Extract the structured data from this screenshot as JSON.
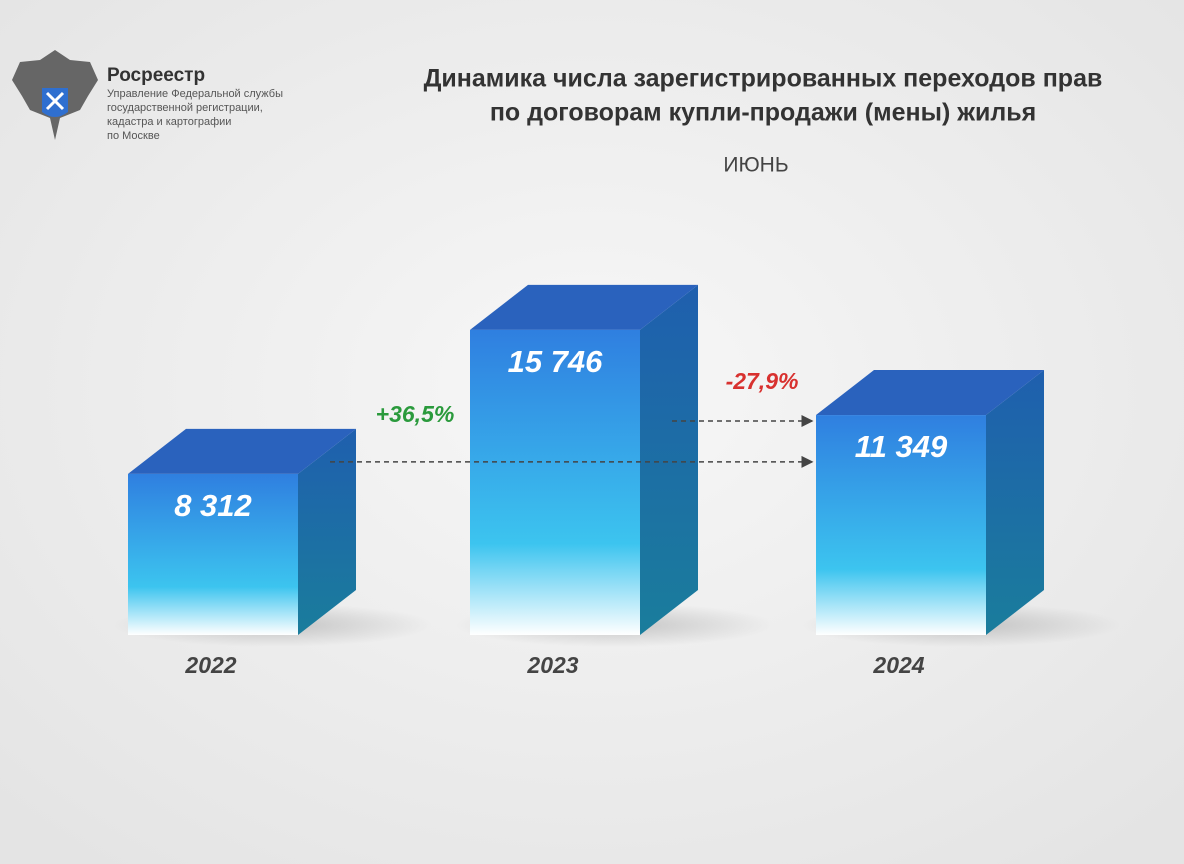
{
  "header": {
    "org": "Росреестр",
    "org_sub": [
      "Управление Федеральной службы",
      "государственной регистрации,",
      "кадастра и картографии",
      "по Москве"
    ]
  },
  "chart_data": {
    "type": "bar3d",
    "title": [
      "Динамика числа зарегистрированных переходов прав",
      "по договорам купли-продажи (мены) жилья"
    ],
    "subtitle": "ИЮНЬ",
    "categories": [
      "2022",
      "2023",
      "2024"
    ],
    "values": [
      8312,
      15746,
      11349
    ],
    "value_labels": [
      "8 312",
      "15 746",
      "11 349"
    ],
    "color": "#2f7fe0",
    "annotations": [
      {
        "text": "+36,5%",
        "color": "#2a9a3c"
      },
      {
        "text": "-27,9%",
        "color": "#d8312f"
      }
    ]
  }
}
